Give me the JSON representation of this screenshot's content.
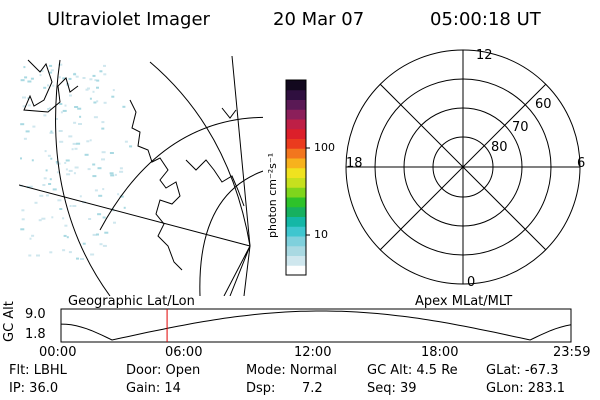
{
  "header": {
    "title": "Ultraviolet Imager",
    "date": "20 Mar 07",
    "time": "05:00:18 UT"
  },
  "colorbar": {
    "unit_label": "photon cm⁻²s⁻¹",
    "ticks": [
      "100",
      "10"
    ],
    "colors": [
      "#ffffff",
      "#cfe7ee",
      "#a9d9e2",
      "#7fd0dc",
      "#3fc6cf",
      "#14b7a6",
      "#17b05f",
      "#2ec22a",
      "#7fd51c",
      "#c6e01e",
      "#f0e21f",
      "#f7b21d",
      "#f2761e",
      "#ea3b1e",
      "#dc1f2a",
      "#be1f46",
      "#8b1f5a",
      "#5a1955",
      "#2f0f3f",
      "#12081e"
    ]
  },
  "polar_plot": {
    "mlt_labels": [
      "12",
      "18",
      "6",
      "0"
    ],
    "lat_labels": [
      "60",
      "70",
      "80"
    ]
  },
  "panel_labels": {
    "left": "Geographic Lat/Lon",
    "right": "Apex MLat/MLT"
  },
  "altitude_plot": {
    "ylabel": "GC Alt",
    "yticks": [
      "9.0",
      "1.8"
    ],
    "xticks": [
      "00:00",
      "06:00",
      "12:00",
      "18:00",
      "23:59"
    ],
    "current_time_fraction": 0.208,
    "marker_color": "#e00000"
  },
  "status": {
    "filter": "Flt: LBHL",
    "door": "Door: Open",
    "mode": "Mode: Normal",
    "gc_alt": "GC Alt: 4.5 Re",
    "glat": "GLat: -67.3",
    "ip": "IP: 36.0",
    "gain": "Gain: 14",
    "dsp_label": "Dsp:",
    "dsp_value": "7.2",
    "seq": "Seq: 39",
    "glon": "GLon: 283.1"
  }
}
